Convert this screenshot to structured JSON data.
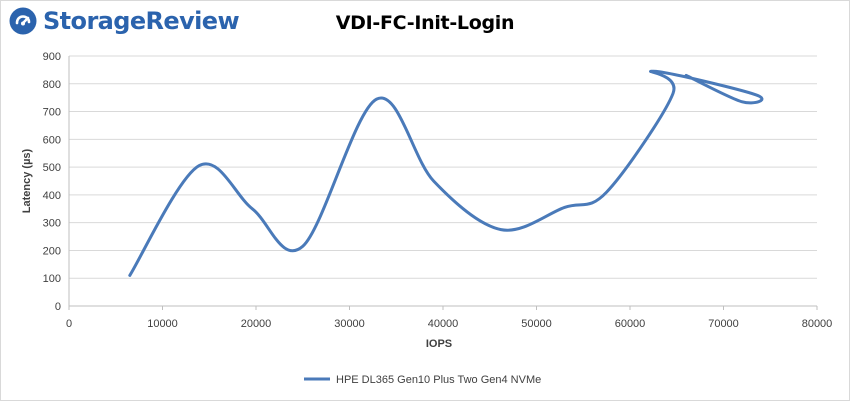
{
  "brand": {
    "name": "StorageReview",
    "color": "#2b63ad",
    "icon": "storagereview-logo-icon"
  },
  "chart_data": {
    "type": "line",
    "title": "VDI-FC-Init-Login",
    "xlabel": "IOPS",
    "ylabel": "Latency (µs)",
    "xlim": [
      0,
      80000
    ],
    "ylim": [
      0,
      900
    ],
    "x_ticks": [
      "0",
      "10000",
      "20000",
      "30000",
      "40000",
      "50000",
      "60000",
      "70000",
      "80000"
    ],
    "y_ticks": [
      "0",
      "100",
      "200",
      "300",
      "400",
      "500",
      "600",
      "700",
      "800",
      "900"
    ],
    "grid": "horizontal",
    "legend": "bottom",
    "series": [
      {
        "name": "HPE DL365 Gen10 Plus Two Gen4 NVMe",
        "color": "#4a7ab9",
        "points": [
          {
            "x": 6500,
            "y": 110
          },
          {
            "x": 13900,
            "y": 505
          },
          {
            "x": 19600,
            "y": 350
          },
          {
            "x": 25000,
            "y": 215
          },
          {
            "x": 32900,
            "y": 745
          },
          {
            "x": 39000,
            "y": 450
          },
          {
            "x": 46200,
            "y": 275
          },
          {
            "x": 53000,
            "y": 355
          },
          {
            "x": 57500,
            "y": 410
          },
          {
            "x": 64600,
            "y": 765
          },
          {
            "x": 62500,
            "y": 845
          },
          {
            "x": 73500,
            "y": 760
          },
          {
            "x": 72000,
            "y": 735
          },
          {
            "x": 66000,
            "y": 830
          }
        ]
      }
    ]
  }
}
